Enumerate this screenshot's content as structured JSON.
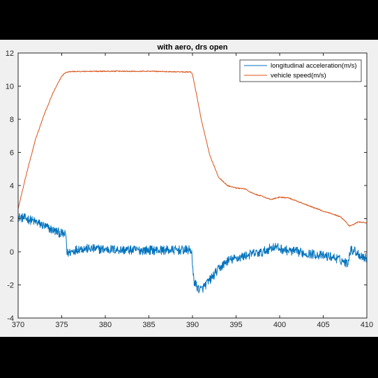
{
  "chart_data": {
    "type": "line",
    "title": "with aero, drs open",
    "xlabel": "",
    "ylabel": "",
    "xlim": [
      370,
      410
    ],
    "ylim": [
      -4,
      12
    ],
    "xticks": [
      370,
      375,
      380,
      385,
      390,
      395,
      400,
      405,
      410
    ],
    "yticks": [
      -4,
      -2,
      0,
      2,
      4,
      6,
      8,
      10,
      12
    ],
    "grid": false,
    "legend_position": "top-right",
    "background": "#f0f0f0",
    "axes_color": "#262626",
    "series": [
      {
        "name": "longitudinal acceleration(m/s)",
        "color": "#0072bd",
        "noise": 0.28,
        "x": [
          370,
          371,
          372,
          373,
          374,
          375,
          375.5,
          375.6,
          377,
          380,
          383,
          386,
          389.9,
          390,
          390.2,
          390.6,
          391,
          391.5,
          392,
          393,
          394,
          395,
          396,
          397,
          398,
          399,
          399.5,
          400,
          401,
          402,
          403,
          404,
          405,
          406,
          407,
          407.8,
          408.1,
          408.5,
          409.2,
          410
        ],
        "y": [
          2.1,
          2.0,
          1.8,
          1.55,
          1.3,
          1.1,
          1.0,
          -0.1,
          0.2,
          0.15,
          0.1,
          0.1,
          0.1,
          -1.0,
          -1.8,
          -2.2,
          -2.3,
          -2.0,
          -1.7,
          -1.05,
          -0.55,
          -0.4,
          -0.25,
          -0.1,
          -0.05,
          0.25,
          0.3,
          0.2,
          0.05,
          0.0,
          -0.1,
          -0.15,
          -0.25,
          -0.3,
          -0.5,
          -0.7,
          0.1,
          0.1,
          -0.2,
          -0.4
        ]
      },
      {
        "name": "vehicle speed(m/s)",
        "color": "#d95319",
        "noise": 0.03,
        "x": [
          370,
          371,
          372,
          373,
          374,
          375,
          375.5,
          376,
          380,
          385,
          389.8,
          390,
          390.5,
          391,
          392,
          393,
          394,
          395,
          396,
          397,
          398,
          399,
          400,
          401,
          402,
          403,
          404,
          405,
          406,
          407,
          407.6,
          408,
          408.5,
          409,
          410
        ],
        "y": [
          2.6,
          4.8,
          6.8,
          8.3,
          9.6,
          10.6,
          10.85,
          10.88,
          10.9,
          10.9,
          10.85,
          10.7,
          9.4,
          8.0,
          5.8,
          4.5,
          4.0,
          3.85,
          3.8,
          3.5,
          3.35,
          3.15,
          3.3,
          3.25,
          3.05,
          2.85,
          2.65,
          2.45,
          2.3,
          2.1,
          1.8,
          1.55,
          1.65,
          1.8,
          1.75
        ]
      }
    ]
  }
}
